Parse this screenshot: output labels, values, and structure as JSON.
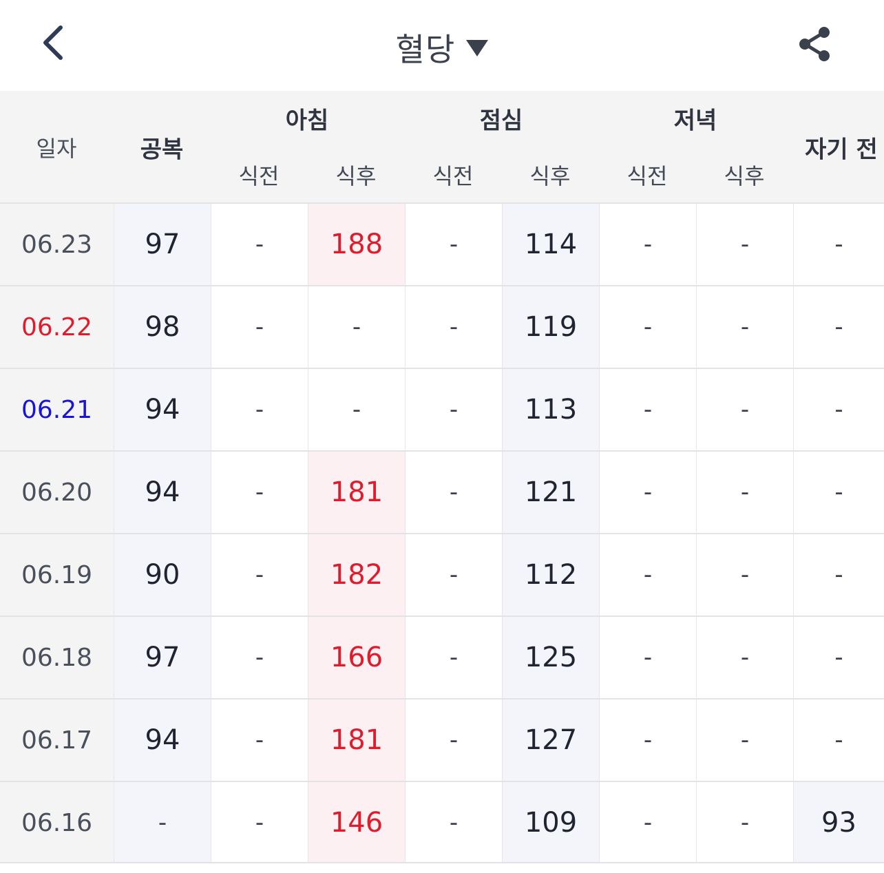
{
  "header": {
    "title": "혈당",
    "back_icon": "chevron-left-icon",
    "dropdown_icon": "caret-down-icon",
    "share_icon": "share-icon"
  },
  "table": {
    "col_date": "일자",
    "col_fasting": "공복",
    "groups": {
      "morning": "아침",
      "lunch": "점심",
      "dinner": "저녁"
    },
    "sub": {
      "before": "식전",
      "after": "식후"
    },
    "col_bedtime": "자기 전",
    "rows": [
      {
        "date": "06.23",
        "date_color": "",
        "fasting": "97",
        "m_before": "-",
        "m_after": "188",
        "l_before": "-",
        "l_after": "114",
        "d_before": "-",
        "d_after": "-",
        "bed": "-"
      },
      {
        "date": "06.22",
        "date_color": "red",
        "fasting": "98",
        "m_before": "-",
        "m_after": "-",
        "l_before": "-",
        "l_after": "119",
        "d_before": "-",
        "d_after": "-",
        "bed": "-"
      },
      {
        "date": "06.21",
        "date_color": "blue",
        "fasting": "94",
        "m_before": "-",
        "m_after": "-",
        "l_before": "-",
        "l_after": "113",
        "d_before": "-",
        "d_after": "-",
        "bed": "-"
      },
      {
        "date": "06.20",
        "date_color": "",
        "fasting": "94",
        "m_before": "-",
        "m_after": "181",
        "l_before": "-",
        "l_after": "121",
        "d_before": "-",
        "d_after": "-",
        "bed": "-"
      },
      {
        "date": "06.19",
        "date_color": "",
        "fasting": "90",
        "m_before": "-",
        "m_after": "182",
        "l_before": "-",
        "l_after": "112",
        "d_before": "-",
        "d_after": "-",
        "bed": "-"
      },
      {
        "date": "06.18",
        "date_color": "",
        "fasting": "97",
        "m_before": "-",
        "m_after": "166",
        "l_before": "-",
        "l_after": "125",
        "d_before": "-",
        "d_after": "-",
        "bed": "-"
      },
      {
        "date": "06.17",
        "date_color": "",
        "fasting": "94",
        "m_before": "-",
        "m_after": "181",
        "l_before": "-",
        "l_after": "127",
        "d_before": "-",
        "d_after": "-",
        "bed": "-"
      },
      {
        "date": "06.16",
        "date_color": "",
        "fasting": "-",
        "m_before": "-",
        "m_after": "146",
        "l_before": "-",
        "l_after": "109",
        "d_before": "-",
        "d_after": "-",
        "bed": "93"
      }
    ]
  },
  "colors": {
    "high_value": "#e01b2c",
    "high_bg": "#fdf0f2",
    "tint_bg": "#f4f5fa",
    "header_bg": "#f4f4f4",
    "weekend_red": "#e01b2c",
    "weekend_blue": "#1a14d6"
  }
}
